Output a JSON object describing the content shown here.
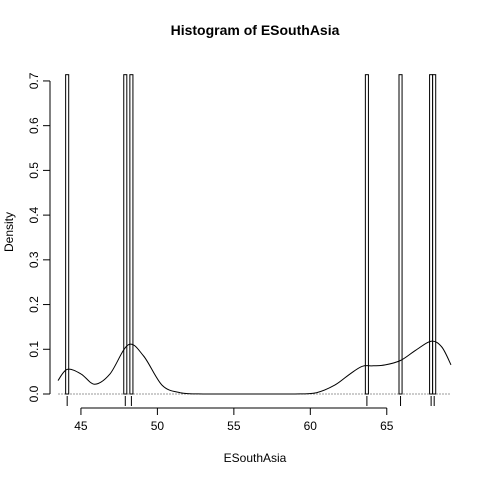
{
  "chart_data": {
    "type": "histogram",
    "title": "Histogram of ESouthAsia",
    "xlabel": "ESouthAsia",
    "ylabel": "Density",
    "xlim": [
      43.5,
      69.2
    ],
    "ylim": [
      0,
      0.72
    ],
    "x_ticks": [
      45,
      50,
      55,
      60,
      65
    ],
    "y_ticks": [
      0.0,
      0.1,
      0.2,
      0.3,
      0.4,
      0.5,
      0.6,
      0.7
    ],
    "y_tick_labels": [
      "0.0",
      "0.1",
      "0.2",
      "0.3",
      "0.4",
      "0.5",
      "0.6",
      "0.7"
    ],
    "bin_width": 0.2,
    "bars": [
      {
        "x0": 44.0,
        "x1": 44.2,
        "density": 0.714
      },
      {
        "x0": 47.8,
        "x1": 48.0,
        "density": 0.714
      },
      {
        "x0": 48.2,
        "x1": 48.4,
        "density": 0.714
      },
      {
        "x0": 63.6,
        "x1": 63.8,
        "density": 0.714
      },
      {
        "x0": 65.8,
        "x1": 66.0,
        "density": 0.714
      },
      {
        "x0": 67.8,
        "x1": 68.0,
        "density": 0.714
      },
      {
        "x0": 68.0,
        "x1": 68.2,
        "density": 0.714
      }
    ],
    "rug": [
      44.1,
      47.9,
      48.3,
      63.7,
      65.9,
      67.9,
      68.1
    ],
    "density_curve": {
      "x": [
        43.5,
        44.1,
        45.0,
        45.9,
        46.9,
        48.1,
        49.1,
        50.3,
        51.5,
        53.0,
        55.0,
        57.0,
        59.0,
        60.4,
        61.6,
        62.6,
        63.4,
        64.1,
        64.9,
        65.9,
        66.9,
        67.9,
        68.6,
        69.2
      ],
      "y": [
        0.03,
        0.055,
        0.045,
        0.022,
        0.045,
        0.11,
        0.085,
        0.02,
        0.003,
        0.0,
        0.0,
        0.0,
        0.0,
        0.003,
        0.02,
        0.045,
        0.062,
        0.063,
        0.065,
        0.075,
        0.098,
        0.118,
        0.105,
        0.065
      ]
    }
  }
}
